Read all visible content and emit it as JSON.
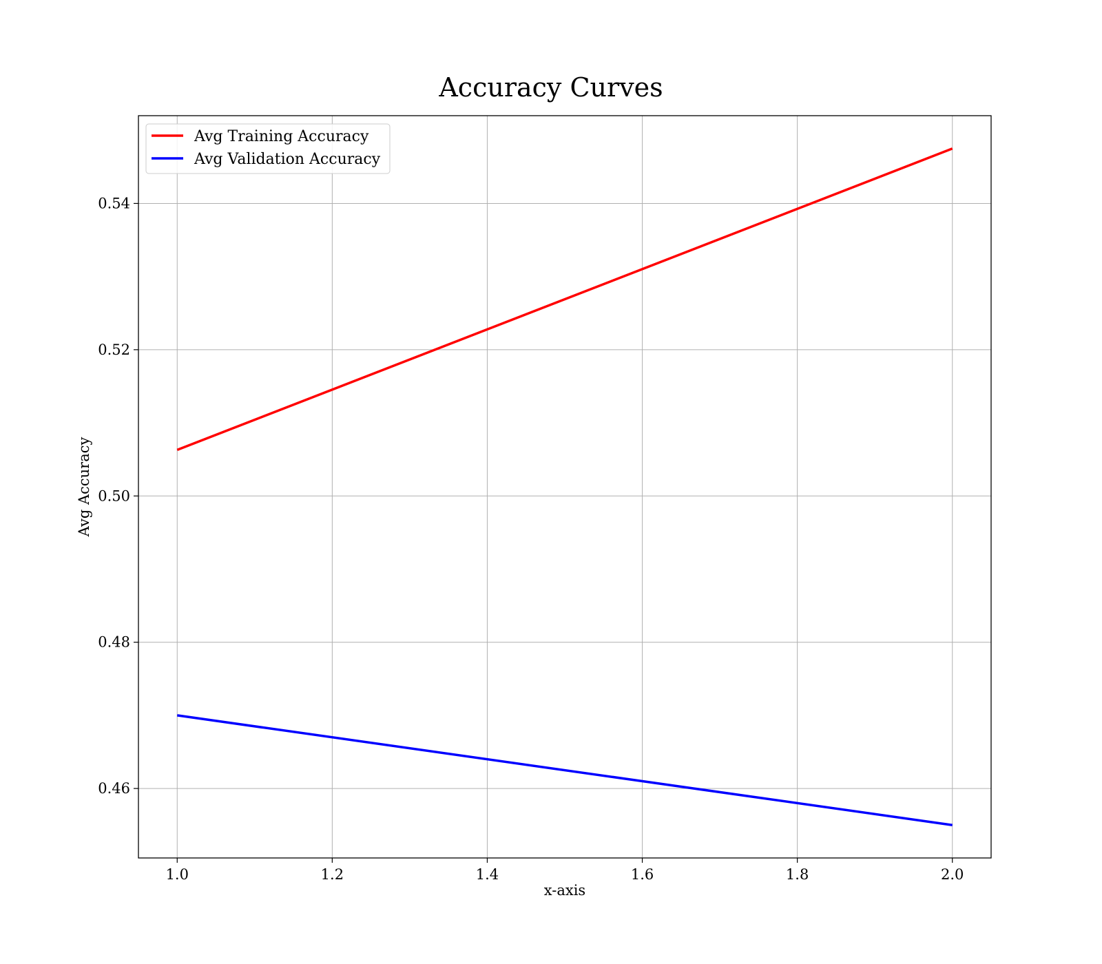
{
  "chart_data": {
    "type": "line",
    "title": "Accuracy Curves",
    "xlabel": "x-axis",
    "ylabel": "Avg Accuracy",
    "xlim": [
      0.95,
      2.05
    ],
    "ylim": [
      0.4505,
      0.552
    ],
    "x_ticks": [
      1.0,
      1.2,
      1.4,
      1.6,
      1.8,
      2.0
    ],
    "x_tick_labels": [
      "1.0",
      "1.2",
      "1.4",
      "1.6",
      "1.8",
      "2.0"
    ],
    "y_ticks": [
      0.46,
      0.48,
      0.5,
      0.52,
      0.54
    ],
    "y_tick_labels": [
      "0.46",
      "0.48",
      "0.50",
      "0.52",
      "0.54"
    ],
    "grid": true,
    "legend_position": "top-left",
    "x": [
      1.0,
      2.0
    ],
    "series": [
      {
        "name": "Avg Training Accuracy",
        "color": "#ff0000",
        "values": [
          0.5063,
          0.5475
        ]
      },
      {
        "name": "Avg Validation Accuracy",
        "color": "#0000ff",
        "values": [
          0.47,
          0.455
        ]
      }
    ]
  }
}
